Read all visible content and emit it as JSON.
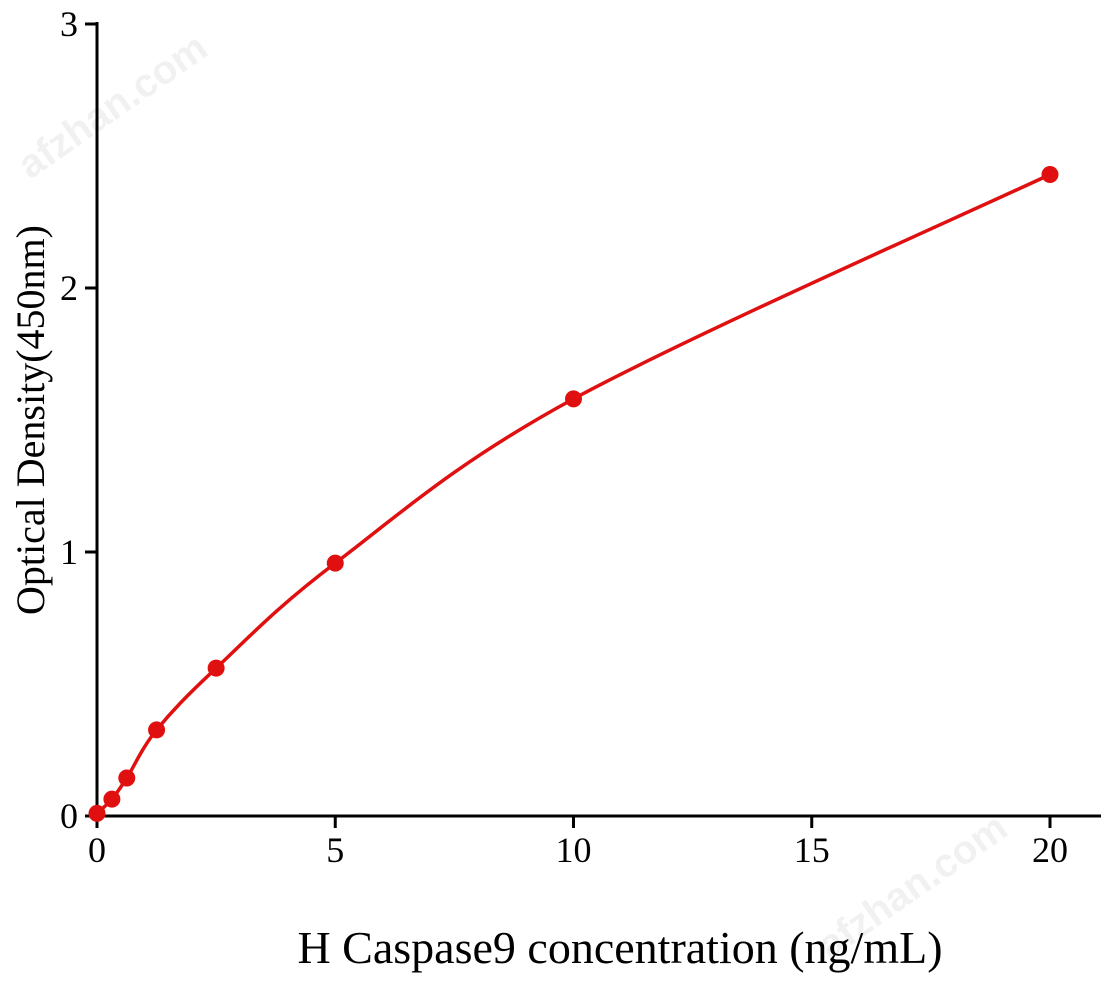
{
  "chart_data": {
    "type": "line",
    "title": "",
    "xlabel": "H Caspase9 concentration (ng/mL)",
    "ylabel": "Optical Density(450nm)",
    "xlim": [
      0,
      21
    ],
    "ylim": [
      0,
      3
    ],
    "xticks": [
      0,
      5,
      10,
      15,
      20
    ],
    "yticks": [
      0,
      1,
      2,
      3
    ],
    "grid": false,
    "legend": "none",
    "series": [
      {
        "x": [
          0,
          0.3125,
          0.625,
          1.25,
          2.5,
          5,
          10,
          20
        ],
        "y": [
          0.01,
          0.064,
          0.144,
          0.326,
          0.56,
          0.958,
          1.58,
          2.43
        ],
        "color": "#e01010",
        "marker": "circle",
        "fit": "smooth curve"
      }
    ]
  },
  "watermark": "afzhan.com"
}
